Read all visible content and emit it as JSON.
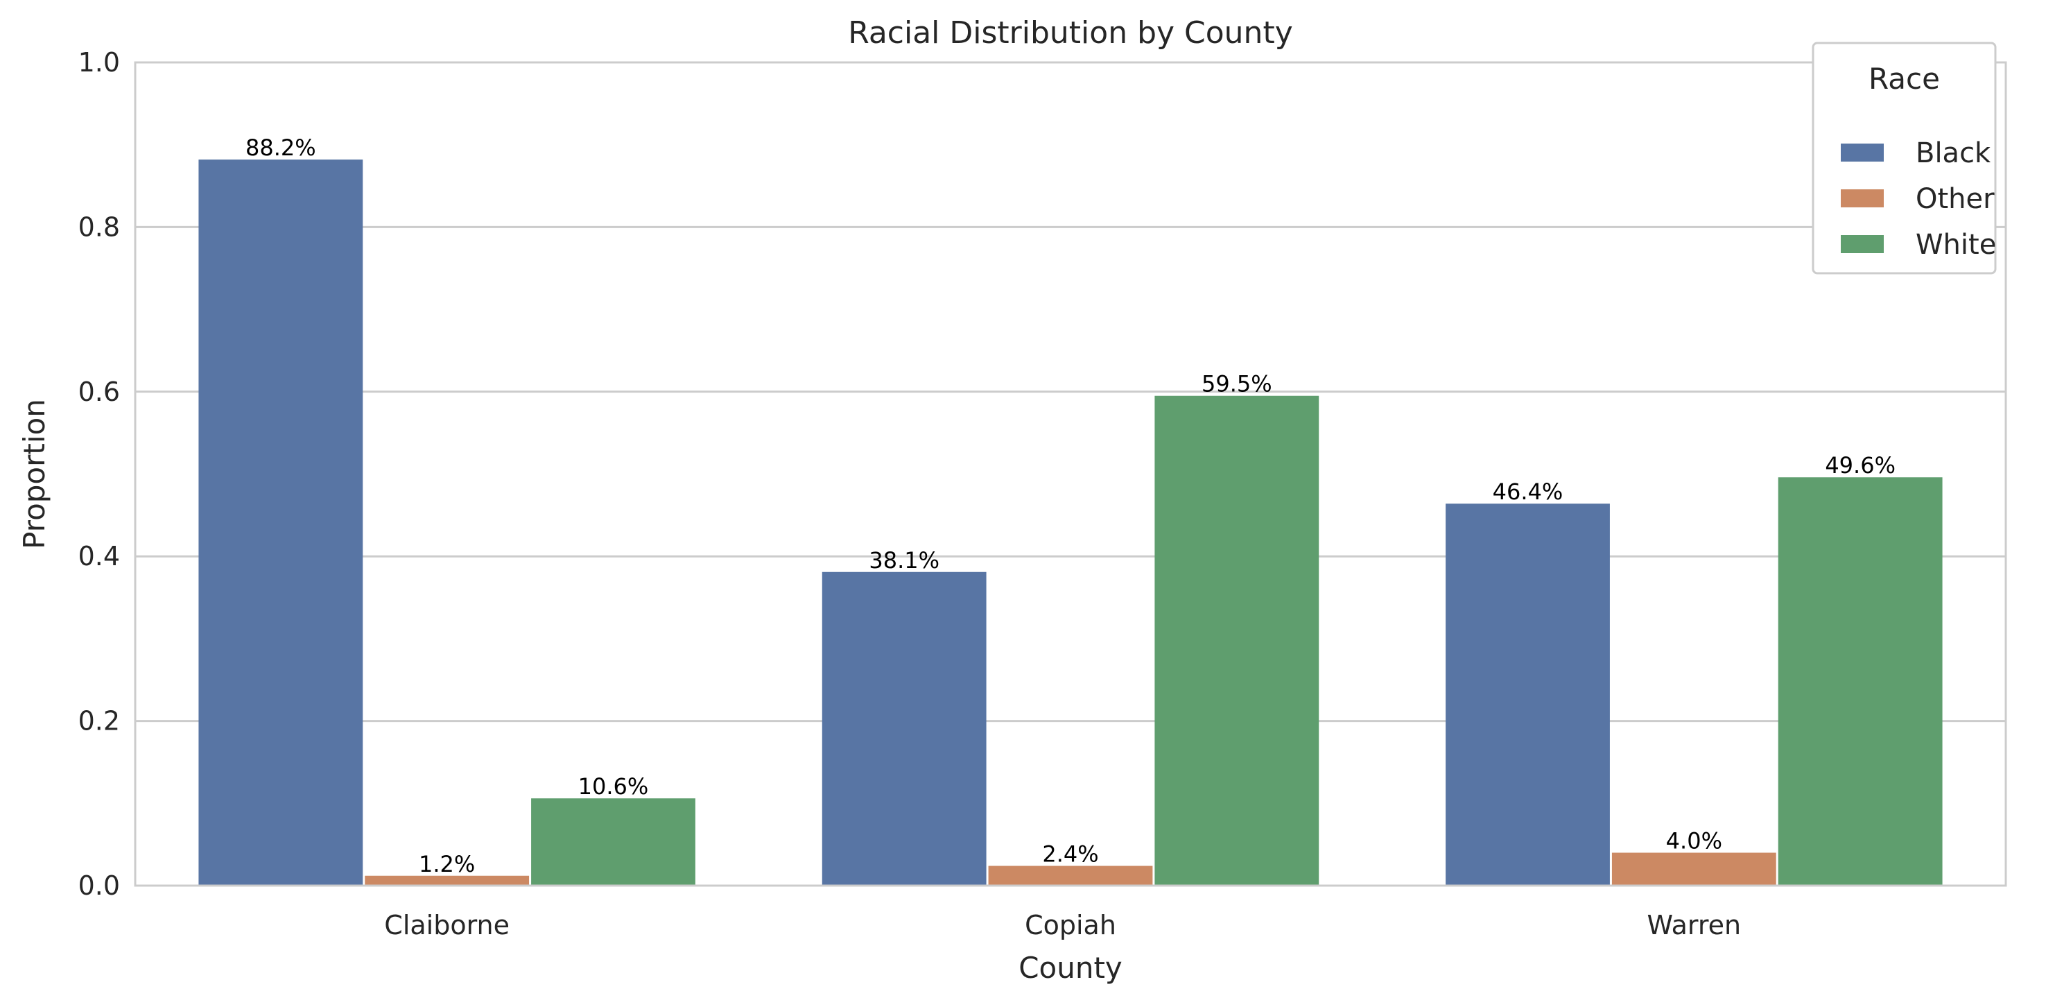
{
  "chart_data": {
    "type": "bar",
    "title": "Racial Distribution by County",
    "xlabel": "County",
    "ylabel": "Proportion",
    "categories": [
      "Claiborne",
      "Copiah",
      "Warren"
    ],
    "series": [
      {
        "name": "Black",
        "values": [
          0.882,
          0.381,
          0.464
        ],
        "labels": [
          "88.2%",
          "38.1%",
          "46.4%"
        ],
        "color": "#5875a4"
      },
      {
        "name": "Other",
        "values": [
          0.012,
          0.024,
          0.04
        ],
        "labels": [
          "1.2%",
          "2.4%",
          "4.0%"
        ],
        "color": "#cc8963"
      },
      {
        "name": "White",
        "values": [
          0.106,
          0.595,
          0.496
        ],
        "labels": [
          "10.6%",
          "59.5%",
          "49.6%"
        ],
        "color": "#5f9e6e"
      }
    ],
    "ylim": [
      0,
      1.0
    ],
    "yticks": [
      "0.0",
      "0.2",
      "0.4",
      "0.6",
      "0.8",
      "1.0"
    ],
    "ytick_values": [
      0,
      0.2,
      0.4,
      0.6,
      0.8,
      1.0
    ],
    "grid": "horizontal",
    "legend": {
      "title": "Race",
      "placement": "top-right"
    },
    "colors": {
      "grid": "#cccccc",
      "spine": "#cccccc",
      "background": "#ffffff"
    }
  }
}
